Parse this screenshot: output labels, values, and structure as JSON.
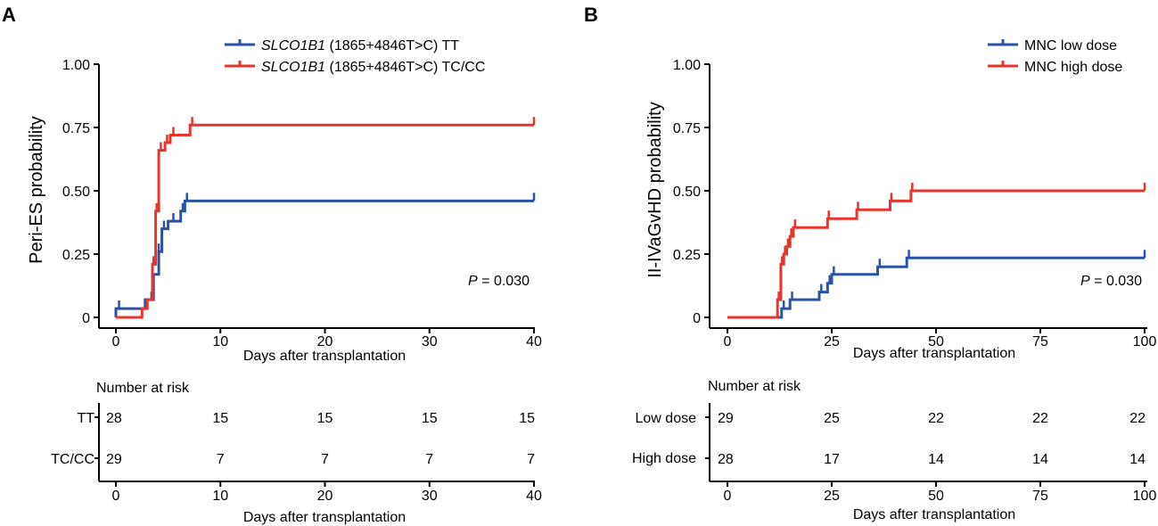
{
  "colors": {
    "blue": "#2a53a6",
    "red": "#e8342c",
    "axis": "#000000"
  },
  "panels": [
    {
      "label": "A",
      "ylabel": "Peri-ES probability",
      "xlabel": "Days after transplantation",
      "pvalue_prefix": "P",
      "pvalue_suffix": " = 0.030",
      "legend": [
        {
          "italic": "SLCO1B1",
          "rest": " (1865+4846T>C) TT",
          "color": "blue"
        },
        {
          "italic": "SLCO1B1",
          "rest": " (1865+4846T>C) TC/CC",
          "color": "red"
        }
      ],
      "risk_title": "Number at risk",
      "risk_rows": [
        {
          "label": "TT",
          "values": [
            "28",
            "15",
            "15",
            "15",
            "15"
          ]
        },
        {
          "label": "TC/CC",
          "values": [
            "29",
            "7",
            "7",
            "7",
            "7"
          ]
        }
      ],
      "risk_xlabel": "Days after transplantation"
    },
    {
      "label": "B",
      "ylabel": "II-IVaGvHD probability",
      "xlabel": "Days after transplantation",
      "pvalue_prefix": "P",
      "pvalue_suffix": " = 0.030",
      "legend": [
        {
          "italic": "",
          "rest": "MNC low dose",
          "color": "blue"
        },
        {
          "italic": "",
          "rest": "MNC high dose",
          "color": "red"
        }
      ],
      "risk_title": "Number at risk",
      "risk_rows": [
        {
          "label": "Low dose",
          "values": [
            "29",
            "25",
            "22",
            "22",
            "22"
          ]
        },
        {
          "label": "High dose",
          "values": [
            "28",
            "17",
            "14",
            "14",
            "14"
          ]
        }
      ],
      "risk_xlabel": "Days after transplantation"
    }
  ],
  "chart_data": [
    {
      "type": "line",
      "step": true,
      "title": "A",
      "xlabel": "Days after transplantation",
      "ylabel": "Peri-ES probability",
      "xlim": [
        0,
        40
      ],
      "ylim": [
        0,
        1
      ],
      "xticks": [
        0,
        10,
        20,
        30,
        40
      ],
      "xtick_labels": [
        "0",
        "10",
        "20",
        "30",
        "40"
      ],
      "yticks": [
        0,
        0.25,
        0.5,
        0.75,
        1.0
      ],
      "ytick_labels": [
        "0",
        "0.25",
        "0.50",
        "0.75",
        "1.00"
      ],
      "series": [
        {
          "name": "SLCO1B1 (1865+4846T>C) TT",
          "color": "blue",
          "points": [
            [
              0,
              0
            ],
            [
              0,
              0.035
            ],
            [
              2.8,
              0.035
            ],
            [
              2.8,
              0.07
            ],
            [
              3.6,
              0.07
            ],
            [
              3.6,
              0.17
            ],
            [
              4.1,
              0.17
            ],
            [
              4.1,
              0.26
            ],
            [
              4.4,
              0.26
            ],
            [
              4.4,
              0.35
            ],
            [
              5.0,
              0.35
            ],
            [
              5.0,
              0.38
            ],
            [
              6.2,
              0.38
            ],
            [
              6.2,
              0.42
            ],
            [
              6.6,
              0.42
            ],
            [
              6.6,
              0.46
            ],
            [
              40,
              0.46
            ]
          ],
          "censors": [
            [
              0.3,
              0.035
            ],
            [
              3.4,
              0.07
            ],
            [
              4.1,
              0.26
            ],
            [
              4.6,
              0.35
            ],
            [
              5.5,
              0.38
            ],
            [
              6.4,
              0.42
            ],
            [
              6.8,
              0.46
            ],
            [
              40,
              0.46
            ]
          ]
        },
        {
          "name": "SLCO1B1 (1865+4846T>C) TC/CC",
          "color": "red",
          "points": [
            [
              0,
              0
            ],
            [
              2.5,
              0
            ],
            [
              2.5,
              0.035
            ],
            [
              3.0,
              0.035
            ],
            [
              3.0,
              0.07
            ],
            [
              3.5,
              0.07
            ],
            [
              3.5,
              0.21
            ],
            [
              3.8,
              0.21
            ],
            [
              3.8,
              0.42
            ],
            [
              4.1,
              0.42
            ],
            [
              4.1,
              0.66
            ],
            [
              4.7,
              0.66
            ],
            [
              4.7,
              0.69
            ],
            [
              5.2,
              0.69
            ],
            [
              5.2,
              0.72
            ],
            [
              7.1,
              0.72
            ],
            [
              7.1,
              0.76
            ],
            [
              40,
              0.76
            ]
          ],
          "censors": [
            [
              3.6,
              0.21
            ],
            [
              3.9,
              0.42
            ],
            [
              4.3,
              0.66
            ],
            [
              4.9,
              0.69
            ],
            [
              5.5,
              0.72
            ],
            [
              7.3,
              0.76
            ],
            [
              40,
              0.76
            ]
          ]
        }
      ],
      "annotations": [
        "P = 0.030"
      ],
      "risk_table": {
        "times": [
          0,
          10,
          20,
          30,
          40
        ],
        "rows": [
          {
            "label": "TT",
            "values": [
              28,
              15,
              15,
              15,
              15
            ]
          },
          {
            "label": "TC/CC",
            "values": [
              29,
              7,
              7,
              7,
              7
            ]
          }
        ]
      }
    },
    {
      "type": "line",
      "step": true,
      "title": "B",
      "xlabel": "Days after transplantation",
      "ylabel": "II-IVaGvHD probability",
      "xlim": [
        0,
        100
      ],
      "ylim": [
        0,
        1
      ],
      "xticks": [
        0,
        25,
        50,
        75,
        100
      ],
      "xtick_labels": [
        "0",
        "25",
        "50",
        "75",
        "100"
      ],
      "yticks": [
        0,
        0.25,
        0.5,
        0.75,
        1.0
      ],
      "ytick_labels": [
        "0",
        "0.25",
        "0.50",
        "0.75",
        "1.00"
      ],
      "series": [
        {
          "name": "MNC low dose",
          "color": "blue",
          "points": [
            [
              0,
              0
            ],
            [
              13,
              0
            ],
            [
              13,
              0.035
            ],
            [
              15,
              0.035
            ],
            [
              15,
              0.07
            ],
            [
              22,
              0.07
            ],
            [
              22,
              0.1
            ],
            [
              24,
              0.1
            ],
            [
              24,
              0.135
            ],
            [
              25,
              0.135
            ],
            [
              25,
              0.17
            ],
            [
              36,
              0.17
            ],
            [
              36,
              0.2
            ],
            [
              43,
              0.2
            ],
            [
              43,
              0.235
            ],
            [
              100,
              0.235
            ]
          ],
          "censors": [
            [
              13.5,
              0.035
            ],
            [
              15.5,
              0.07
            ],
            [
              22.5,
              0.1
            ],
            [
              24.5,
              0.135
            ],
            [
              25.5,
              0.17
            ],
            [
              36.5,
              0.2
            ],
            [
              43.5,
              0.235
            ],
            [
              100,
              0.235
            ]
          ]
        },
        {
          "name": "MNC high dose",
          "color": "red",
          "points": [
            [
              0,
              0
            ],
            [
              12,
              0
            ],
            [
              12,
              0.07
            ],
            [
              12.8,
              0.07
            ],
            [
              12.8,
              0.21
            ],
            [
              13.5,
              0.21
            ],
            [
              13.5,
              0.25
            ],
            [
              14.2,
              0.25
            ],
            [
              14.2,
              0.28
            ],
            [
              15,
              0.28
            ],
            [
              15,
              0.32
            ],
            [
              15.8,
              0.32
            ],
            [
              15.8,
              0.355
            ],
            [
              24,
              0.355
            ],
            [
              24,
              0.39
            ],
            [
              31,
              0.39
            ],
            [
              31,
              0.425
            ],
            [
              39,
              0.425
            ],
            [
              39,
              0.46
            ],
            [
              44,
              0.46
            ],
            [
              44,
              0.5
            ],
            [
              100,
              0.5
            ]
          ],
          "censors": [
            [
              12.3,
              0.07
            ],
            [
              13.1,
              0.21
            ],
            [
              13.8,
              0.25
            ],
            [
              14.5,
              0.28
            ],
            [
              15.3,
              0.32
            ],
            [
              16.2,
              0.355
            ],
            [
              24.3,
              0.39
            ],
            [
              31.3,
              0.425
            ],
            [
              39.3,
              0.46
            ],
            [
              44.3,
              0.5
            ],
            [
              100,
              0.5
            ]
          ]
        }
      ],
      "annotations": [
        "P = 0.030"
      ],
      "risk_table": {
        "times": [
          0,
          25,
          50,
          75,
          100
        ],
        "rows": [
          {
            "label": "Low dose",
            "values": [
              29,
              25,
              22,
              22,
              22
            ]
          },
          {
            "label": "High dose",
            "values": [
              28,
              17,
              14,
              14,
              14
            ]
          }
        ]
      }
    }
  ]
}
